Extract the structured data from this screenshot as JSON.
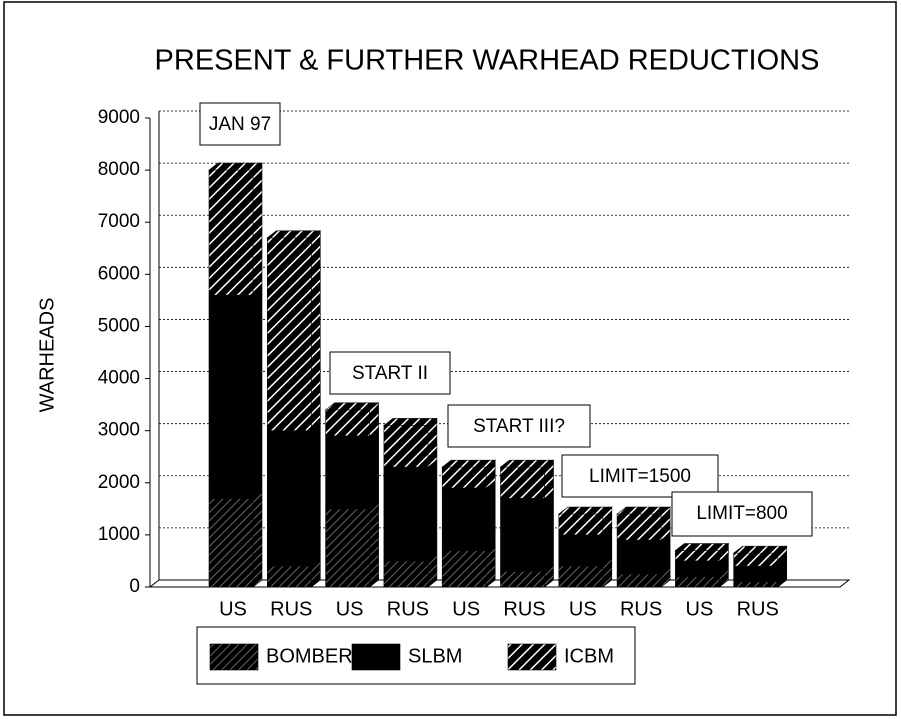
{
  "chart_data": {
    "type": "bar",
    "stacked": true,
    "three_d": true,
    "title": "PRESENT & FURTHER WARHEAD REDUCTIONS",
    "y_label": "WARHEADS",
    "categories": [
      "US",
      "RUS",
      "US",
      "RUS",
      "US",
      "RUS",
      "US",
      "RUS",
      "US",
      "RUS"
    ],
    "series": [
      {
        "name": "BOMBER",
        "color": "#000000",
        "values": [
          1700,
          400,
          1500,
          500,
          700,
          300,
          400,
          250,
          200,
          100
        ]
      },
      {
        "name": "SLBM",
        "color": "#000000",
        "values": [
          3900,
          2600,
          1400,
          1800,
          1200,
          1400,
          600,
          650,
          300,
          300
        ]
      },
      {
        "name": "ICBM",
        "color": "#000000",
        "values": [
          2400,
          3700,
          500,
          800,
          400,
          600,
          400,
          500,
          200,
          250
        ]
      }
    ],
    "annotations": [
      "JAN 97",
      "START II",
      "START III?",
      "LIMIT=1500",
      "LIMIT=800"
    ],
    "ylim": [
      0,
      9000
    ],
    "yticks": [
      0,
      1000,
      2000,
      3000,
      4000,
      5000,
      6000,
      7000,
      8000,
      9000
    ],
    "grid": true,
    "legend": "bottom"
  }
}
